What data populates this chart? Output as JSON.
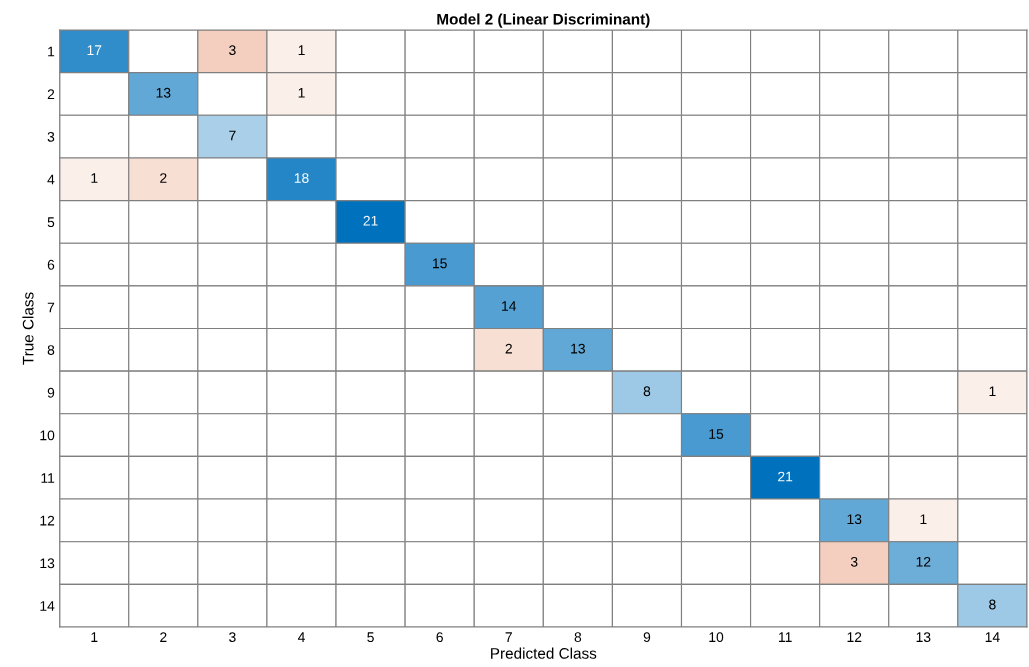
{
  "chart_data": {
    "type": "heatmap",
    "title": "Model 2 (Linear Discriminant)",
    "xlabel": "Predicted Class",
    "ylabel": "True Class",
    "categories": [
      "1",
      "2",
      "3",
      "4",
      "5",
      "6",
      "7",
      "8",
      "9",
      "10",
      "11",
      "12",
      "13",
      "14"
    ],
    "y_categories": [
      "1",
      "2",
      "3",
      "4",
      "5",
      "6",
      "7",
      "8",
      "9",
      "10",
      "11",
      "12",
      "13",
      "14"
    ],
    "cells": [
      [
        17,
        null,
        3,
        1,
        null,
        null,
        null,
        null,
        null,
        null,
        null,
        null,
        null,
        null
      ],
      [
        null,
        13,
        null,
        1,
        null,
        null,
        null,
        null,
        null,
        null,
        null,
        null,
        null,
        null
      ],
      [
        null,
        null,
        7,
        null,
        null,
        null,
        null,
        null,
        null,
        null,
        null,
        null,
        null,
        null
      ],
      [
        1,
        2,
        null,
        18,
        null,
        null,
        null,
        null,
        null,
        null,
        null,
        null,
        null,
        null
      ],
      [
        null,
        null,
        null,
        null,
        21,
        null,
        null,
        null,
        null,
        null,
        null,
        null,
        null,
        null
      ],
      [
        null,
        null,
        null,
        null,
        null,
        15,
        null,
        null,
        null,
        null,
        null,
        null,
        null,
        null
      ],
      [
        null,
        null,
        null,
        null,
        null,
        null,
        14,
        null,
        null,
        null,
        null,
        null,
        null,
        null
      ],
      [
        null,
        null,
        null,
        null,
        null,
        null,
        2,
        13,
        null,
        null,
        null,
        null,
        null,
        null
      ],
      [
        null,
        null,
        null,
        null,
        null,
        null,
        null,
        null,
        8,
        null,
        null,
        null,
        null,
        1
      ],
      [
        null,
        null,
        null,
        null,
        null,
        null,
        null,
        null,
        null,
        15,
        null,
        null,
        null,
        null
      ],
      [
        null,
        null,
        null,
        null,
        null,
        null,
        null,
        null,
        null,
        null,
        21,
        null,
        null,
        null
      ],
      [
        null,
        null,
        null,
        null,
        null,
        null,
        null,
        null,
        null,
        null,
        null,
        13,
        1,
        null
      ],
      [
        null,
        null,
        null,
        null,
        null,
        null,
        null,
        null,
        null,
        null,
        null,
        3,
        12,
        null
      ],
      [
        null,
        null,
        null,
        null,
        null,
        null,
        null,
        null,
        null,
        null,
        null,
        null,
        null,
        8
      ]
    ],
    "data_labels": true
  }
}
